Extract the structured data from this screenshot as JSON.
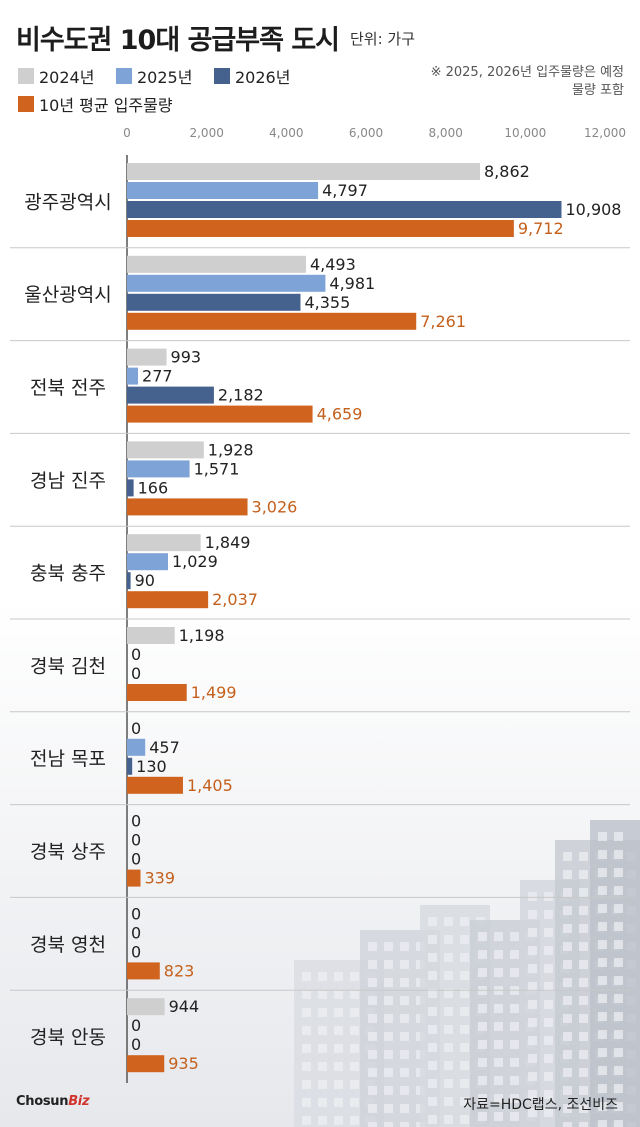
{
  "title": "비수도권 10대 공급부족 도시",
  "unit": "단위: 가구",
  "legend": [
    {
      "label": "2024년",
      "color": "#cfcfcf"
    },
    {
      "label": "2025년",
      "color": "#7ea3d6"
    },
    {
      "label": "2026년",
      "color": "#45628f"
    },
    {
      "label": "10년 평균 입주물량",
      "color": "#d0631e"
    }
  ],
  "note": "※ 2025, 2026년 입주물량은 예정물량 포함",
  "logo": {
    "main": "Chosun",
    "biz": "Biz"
  },
  "source": "자료=HDC랩스, 조선비즈",
  "chart_data": {
    "type": "bar",
    "orientation": "horizontal",
    "xlim": [
      0,
      12000
    ],
    "ticks": [
      "0",
      "2,000",
      "4,000",
      "6,000",
      "8,000",
      "10,000",
      "12,000"
    ],
    "tick_values": [
      0,
      2000,
      4000,
      6000,
      8000,
      10000,
      12000
    ],
    "categories": [
      "광주광역시",
      "울산광역시",
      "전북 전주",
      "경남 진주",
      "충북 충주",
      "경북 김천",
      "전남 목포",
      "경북 상주",
      "경북 영천",
      "경북 안동"
    ],
    "series": [
      {
        "name": "2024년",
        "color": "#cfcfcf",
        "label_color": "#222222",
        "values": [
          8862,
          4493,
          993,
          1928,
          1849,
          1198,
          0,
          0,
          0,
          944
        ],
        "labels": [
          "8,862",
          "4,493",
          "993",
          "1,928",
          "1,849",
          "1,198",
          "0",
          "0",
          "0",
          "944"
        ]
      },
      {
        "name": "2025년",
        "color": "#7ea3d6",
        "label_color": "#222222",
        "values": [
          4797,
          4981,
          277,
          1571,
          1029,
          0,
          457,
          0,
          0,
          0
        ],
        "labels": [
          "4,797",
          "4,981",
          "277",
          "1,571",
          "1,029",
          "0",
          "457",
          "0",
          "0",
          "0"
        ]
      },
      {
        "name": "2026년",
        "color": "#45628f",
        "label_color": "#222222",
        "values": [
          10908,
          4355,
          2182,
          166,
          90,
          0,
          130,
          0,
          0,
          0
        ],
        "labels": [
          "10,908",
          "4,355",
          "2,182",
          "166",
          "90",
          "0",
          "130",
          "0",
          "0",
          "0"
        ]
      },
      {
        "name": "10년 평균 입주물량",
        "color": "#d0631e",
        "label_color": "#c4601c",
        "values": [
          9712,
          7261,
          4659,
          3026,
          2037,
          1499,
          1405,
          339,
          823,
          935
        ],
        "labels": [
          "9,712",
          "7,261",
          "4,659",
          "3,026",
          "2,037",
          "1,499",
          "1,405",
          "339",
          "823",
          "935"
        ]
      }
    ]
  }
}
